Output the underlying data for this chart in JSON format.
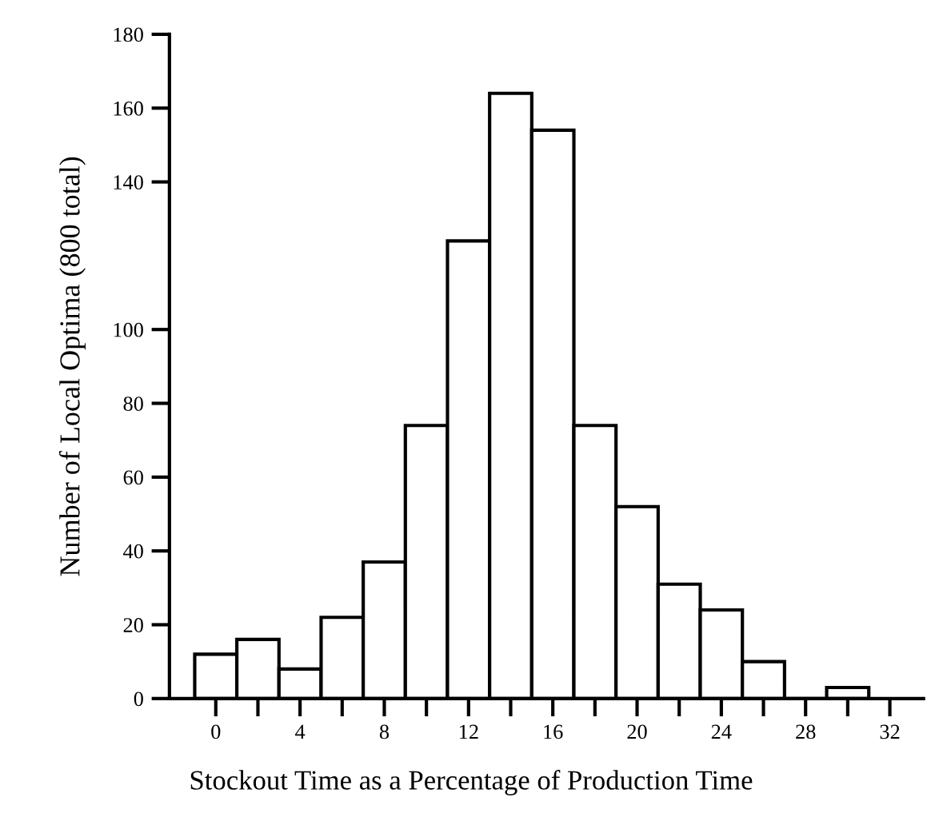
{
  "chart_data": {
    "type": "histogram",
    "xlabel": "Stockout Time as a Percentage of Production Time",
    "ylabel": "Number of Local Optima (800 total)",
    "bins": [
      -1,
      1,
      3,
      5,
      7,
      9,
      11,
      13,
      15,
      17,
      19,
      21,
      23,
      25,
      27,
      29,
      31
    ],
    "values": [
      12,
      16,
      8,
      22,
      37,
      74,
      124,
      164,
      154,
      74,
      52,
      31,
      24,
      10,
      0,
      3
    ],
    "color": "#ffffff",
    "xlim": [
      -2.2,
      33.6
    ],
    "xticks": [
      0,
      {
        "value": 2,
        "label": null
      },
      4,
      {
        "value": 6,
        "label": null
      },
      8,
      {
        "value": 10,
        "label": null
      },
      12,
      {
        "value": 14,
        "label": null
      },
      16,
      {
        "value": 18,
        "label": null
      },
      20,
      {
        "value": 22,
        "label": null
      },
      24,
      {
        "value": 26,
        "label": null
      },
      28,
      {
        "value": 30,
        "label": null
      },
      32
    ],
    "ylim": [
      0,
      180
    ],
    "yticks": [
      0,
      20,
      40,
      60,
      80,
      100,
      140,
      160,
      180
    ],
    "grid": false,
    "legend": false
  }
}
